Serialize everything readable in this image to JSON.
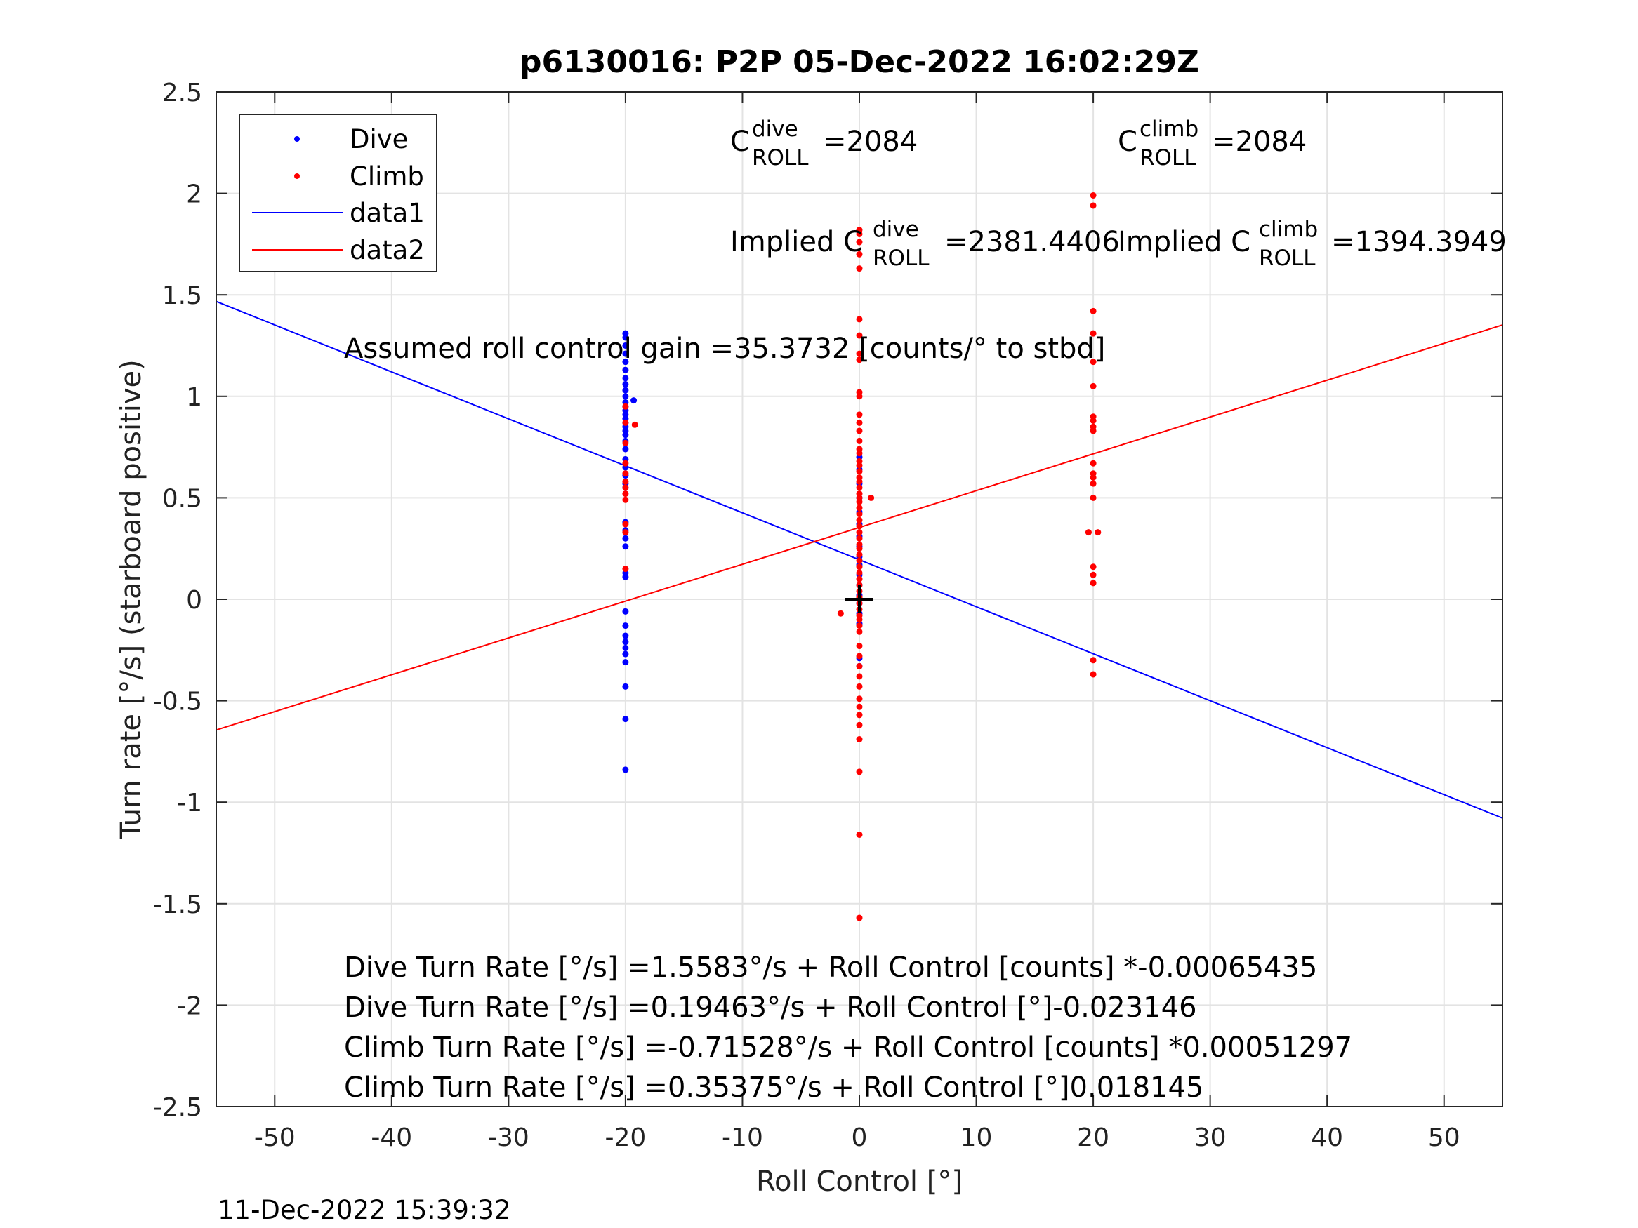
{
  "chart_data": {
    "type": "scatter",
    "title": "p6130016: P2P 05-Dec-2022 16:02:29Z",
    "xlabel": "Roll Control [°]",
    "ylabel": "Turn rate [°/s] (starboard positive)",
    "xlim": [
      -55,
      55
    ],
    "ylim": [
      -2.5,
      2.5
    ],
    "xticks": [
      -50,
      -40,
      -30,
      -20,
      -10,
      0,
      10,
      20,
      30,
      40,
      50
    ],
    "yticks": [
      -2.5,
      -2,
      -1.5,
      -1,
      -0.5,
      0,
      0.5,
      1,
      1.5,
      2,
      2.5
    ],
    "grid": true,
    "legend_position": "top-left",
    "legend": [
      "Dive",
      "Climb",
      "data1",
      "data2"
    ],
    "colors": {
      "dive": "#0000ff",
      "climb": "#ff0000",
      "data1": "#0000ff",
      "data2": "#ff0000",
      "marker": "#000000"
    },
    "series": [
      {
        "name": "Dive",
        "type": "scatter",
        "points": [
          [
            -20,
            1.31
          ],
          [
            -20,
            1.29
          ],
          [
            -20,
            1.25
          ],
          [
            -20,
            1.21
          ],
          [
            -20,
            1.17
          ],
          [
            -20,
            1.13
          ],
          [
            -20,
            1.09
          ],
          [
            -20,
            1.06
          ],
          [
            -20,
            1.03
          ],
          [
            -20,
            1.0
          ],
          [
            -20,
            0.97
          ],
          [
            -20,
            0.95
          ],
          [
            -20,
            0.93
          ],
          [
            -20,
            0.91
          ],
          [
            -20,
            0.89
          ],
          [
            -20,
            0.87
          ],
          [
            -20,
            0.85
          ],
          [
            -20,
            0.83
          ],
          [
            -20,
            0.81
          ],
          [
            -20,
            0.78
          ],
          [
            -20,
            0.74
          ],
          [
            -20,
            0.69
          ],
          [
            -20,
            0.65
          ],
          [
            -20,
            0.61
          ],
          [
            -20,
            0.57
          ],
          [
            -20,
            0.55
          ],
          [
            -20,
            0.38
          ],
          [
            -20,
            0.34
          ],
          [
            -20,
            0.3
          ],
          [
            -20,
            0.26
          ],
          [
            -20,
            0.13
          ],
          [
            -20,
            0.11
          ],
          [
            -20,
            -0.06
          ],
          [
            -20,
            -0.13
          ],
          [
            -20,
            -0.18
          ],
          [
            -20,
            -0.21
          ],
          [
            -20,
            -0.24
          ],
          [
            -20,
            -0.27
          ],
          [
            -20,
            -0.31
          ],
          [
            -20,
            -0.43
          ],
          [
            -20,
            -0.59
          ],
          [
            -20,
            -0.84
          ],
          [
            -19.3,
            0.98
          ],
          [
            0,
            0.7
          ],
          [
            0,
            0.64
          ],
          [
            0,
            0.57
          ],
          [
            0,
            0.5
          ],
          [
            0,
            0.43
          ],
          [
            0,
            0.37
          ],
          [
            0,
            0.31
          ],
          [
            0,
            0.26
          ],
          [
            0,
            0.21
          ],
          [
            0,
            0.17
          ],
          [
            0,
            0.12
          ],
          [
            0,
            0.07
          ],
          [
            0,
            0.02
          ],
          [
            0,
            -0.02
          ],
          [
            0,
            -0.07
          ],
          [
            0,
            -0.12
          ],
          [
            0,
            -0.29
          ],
          [
            0,
            -0.33
          ]
        ]
      },
      {
        "name": "Climb",
        "type": "scatter",
        "points": [
          [
            -20,
            0.95
          ],
          [
            -20,
            0.87
          ],
          [
            -20,
            0.77
          ],
          [
            -20,
            0.67
          ],
          [
            -20,
            0.62
          ],
          [
            -20,
            0.58
          ],
          [
            -20,
            0.55
          ],
          [
            -20,
            0.52
          ],
          [
            -20,
            0.49
          ],
          [
            -20,
            0.37
          ],
          [
            -20,
            0.33
          ],
          [
            -20,
            0.15
          ],
          [
            -19.2,
            0.86
          ],
          [
            0,
            1.82
          ],
          [
            0,
            1.8
          ],
          [
            0,
            1.76
          ],
          [
            0,
            1.7
          ],
          [
            0,
            1.63
          ],
          [
            0,
            1.38
          ],
          [
            0,
            1.3
          ],
          [
            0,
            1.21
          ],
          [
            0,
            1.18
          ],
          [
            0,
            1.02
          ],
          [
            0,
            1.0
          ],
          [
            0,
            0.91
          ],
          [
            0,
            0.87
          ],
          [
            0,
            0.83
          ],
          [
            0,
            0.78
          ],
          [
            0,
            0.74
          ],
          [
            0,
            0.72
          ],
          [
            0,
            0.68
          ],
          [
            0,
            0.66
          ],
          [
            0,
            0.63
          ],
          [
            0,
            0.6
          ],
          [
            0,
            0.58
          ],
          [
            0,
            0.55
          ],
          [
            0,
            0.52
          ],
          [
            0,
            0.5
          ],
          [
            0,
            0.48
          ],
          [
            0,
            0.45
          ],
          [
            0,
            0.42
          ],
          [
            0,
            0.39
          ],
          [
            0,
            0.36
          ],
          [
            0,
            0.33
          ],
          [
            0,
            0.3
          ],
          [
            0,
            0.27
          ],
          [
            0,
            0.25
          ],
          [
            0,
            0.22
          ],
          [
            0,
            0.19
          ],
          [
            0,
            0.16
          ],
          [
            0,
            0.13
          ],
          [
            0,
            0.1
          ],
          [
            0,
            0.07
          ],
          [
            0,
            0.04
          ],
          [
            0,
            0.01
          ],
          [
            0,
            -0.02
          ],
          [
            0,
            -0.05
          ],
          [
            0,
            -0.08
          ],
          [
            0,
            -0.1
          ],
          [
            0,
            -0.13
          ],
          [
            0,
            -0.16
          ],
          [
            0,
            -0.23
          ],
          [
            0,
            -0.28
          ],
          [
            0,
            -0.33
          ],
          [
            0,
            -0.38
          ],
          [
            0,
            -0.43
          ],
          [
            0,
            -0.49
          ],
          [
            0,
            -0.53
          ],
          [
            0,
            -0.57
          ],
          [
            0,
            -0.62
          ],
          [
            0,
            -0.69
          ],
          [
            0,
            -0.85
          ],
          [
            0,
            -1.16
          ],
          [
            0,
            -1.57
          ],
          [
            1,
            0.5
          ],
          [
            -1.6,
            -0.07
          ],
          [
            20,
            1.99
          ],
          [
            20,
            1.94
          ],
          [
            20,
            1.42
          ],
          [
            20,
            1.31
          ],
          [
            20,
            1.17
          ],
          [
            20,
            1.05
          ],
          [
            20,
            0.9
          ],
          [
            20,
            0.88
          ],
          [
            20,
            0.85
          ],
          [
            20,
            0.83
          ],
          [
            20,
            0.67
          ],
          [
            20,
            0.62
          ],
          [
            20,
            0.6
          ],
          [
            20,
            0.57
          ],
          [
            20,
            0.5
          ],
          [
            20,
            0.16
          ],
          [
            20,
            0.12
          ],
          [
            20,
            0.08
          ],
          [
            20,
            -0.3
          ],
          [
            20,
            -0.37
          ],
          [
            19.6,
            0.33
          ],
          [
            20.4,
            0.33
          ]
        ]
      },
      {
        "name": "data1",
        "type": "line",
        "intercept": 0.19463,
        "slope": -0.023146
      },
      {
        "name": "data2",
        "type": "line",
        "intercept": 0.35375,
        "slope": 0.018145
      }
    ],
    "crosshair": [
      0,
      0
    ],
    "annotations": {
      "c_dive": {
        "base": "C",
        "sup": "dive",
        "sub": "ROLL",
        "value": "=2084"
      },
      "c_climb": {
        "base": "C",
        "sup": "climb",
        "sub": "ROLL",
        "value": "=2084"
      },
      "implied_dive": {
        "base": "Implied C",
        "sup": "dive",
        "sub": "ROLL",
        "value": "=2381.4406"
      },
      "implied_climb": {
        "base": "Implied C",
        "sup": "climb",
        "sub": "ROLL",
        "value": "=1394.3949"
      },
      "gain": "Assumed roll control gain =35.3732 [counts/° to stbd]",
      "equations": [
        "Dive Turn Rate [°/s] =1.5583°/s + Roll Control [counts] *-0.00065435",
        "Dive Turn Rate [°/s] =0.19463°/s + Roll Control [°]-0.023146",
        "Climb Turn Rate [°/s] =-0.71528°/s + Roll Control [counts] *0.00051297",
        "Climb Turn Rate [°/s] =0.35375°/s + Roll Control [°]0.018145"
      ]
    }
  },
  "footer_timestamp": "11-Dec-2022 15:39:32"
}
